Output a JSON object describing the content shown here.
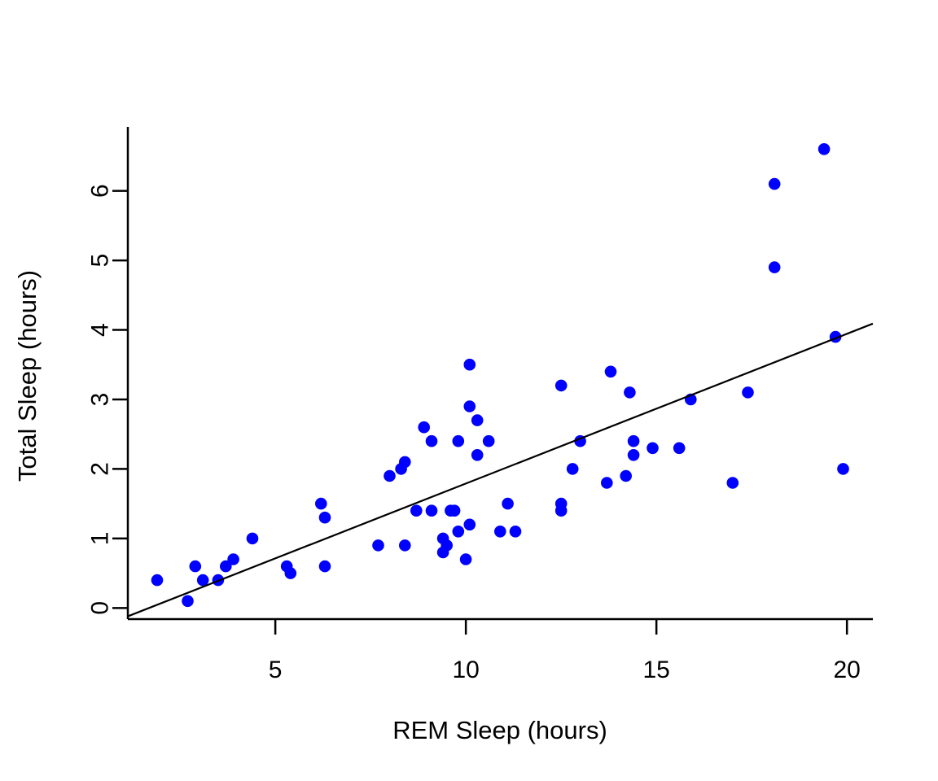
{
  "figure": {
    "background": "#FFFFFF",
    "axis_color": "#000000"
  },
  "chart_data": {
    "type": "scatter",
    "title": "",
    "xlabel": "REM Sleep (hours)",
    "ylabel": "Total Sleep (hours)",
    "x_ticks": [
      5,
      10,
      15,
      20
    ],
    "y_ticks": [
      0,
      1,
      2,
      3,
      4,
      5,
      6
    ],
    "xlim": [
      1.13,
      20.68
    ],
    "ylim": [
      -0.16,
      6.92
    ],
    "grid": false,
    "legend": null,
    "point_style": {
      "shape": "filled-circle",
      "color": "#0000FF",
      "radius_px": 7.3
    },
    "fit_line": {
      "x1": 1.13,
      "y1": -0.12,
      "x2": 20.68,
      "y2": 4.09,
      "color": "#000000"
    },
    "points": [
      [
        1.9,
        0.4
      ],
      [
        2.9,
        0.6
      ],
      [
        2.7,
        0.1
      ],
      [
        3.1,
        0.4
      ],
      [
        3.5,
        0.4
      ],
      [
        3.7,
        0.6
      ],
      [
        3.9,
        0.7
      ],
      [
        4.4,
        1.0
      ],
      [
        5.3,
        0.6
      ],
      [
        5.4,
        0.5
      ],
      [
        6.2,
        1.5
      ],
      [
        6.3,
        1.3
      ],
      [
        6.3,
        0.6
      ],
      [
        7.7,
        0.9
      ],
      [
        8.4,
        0.9
      ],
      [
        8.0,
        1.9
      ],
      [
        8.3,
        2.0
      ],
      [
        8.4,
        2.1
      ],
      [
        8.9,
        2.6
      ],
      [
        9.1,
        2.4
      ],
      [
        9.8,
        2.4
      ],
      [
        10.6,
        2.4
      ],
      [
        10.3,
        2.2
      ],
      [
        10.1,
        3.5
      ],
      [
        10.1,
        2.9
      ],
      [
        10.3,
        2.7
      ],
      [
        8.7,
        1.4
      ],
      [
        9.1,
        1.4
      ],
      [
        9.6,
        1.4
      ],
      [
        9.7,
        1.4
      ],
      [
        9.4,
        1.0
      ],
      [
        9.5,
        0.9
      ],
      [
        9.4,
        0.8
      ],
      [
        9.8,
        1.1
      ],
      [
        10.1,
        1.2
      ],
      [
        10.0,
        0.7
      ],
      [
        10.9,
        1.1
      ],
      [
        11.3,
        1.1
      ],
      [
        11.1,
        1.5
      ],
      [
        12.5,
        3.2
      ],
      [
        12.8,
        2.0
      ],
      [
        13.0,
        2.4
      ],
      [
        12.5,
        1.5
      ],
      [
        12.5,
        1.4
      ],
      [
        13.8,
        3.4
      ],
      [
        13.7,
        1.8
      ],
      [
        14.2,
        1.9
      ],
      [
        14.3,
        3.1
      ],
      [
        14.4,
        2.4
      ],
      [
        14.4,
        2.2
      ],
      [
        14.9,
        2.3
      ],
      [
        15.6,
        2.3
      ],
      [
        15.9,
        3.0
      ],
      [
        17.0,
        1.8
      ],
      [
        17.4,
        3.1
      ],
      [
        18.1,
        4.9
      ],
      [
        18.1,
        6.1
      ],
      [
        19.4,
        6.6
      ],
      [
        19.7,
        3.9
      ],
      [
        19.9,
        2.0
      ]
    ]
  }
}
